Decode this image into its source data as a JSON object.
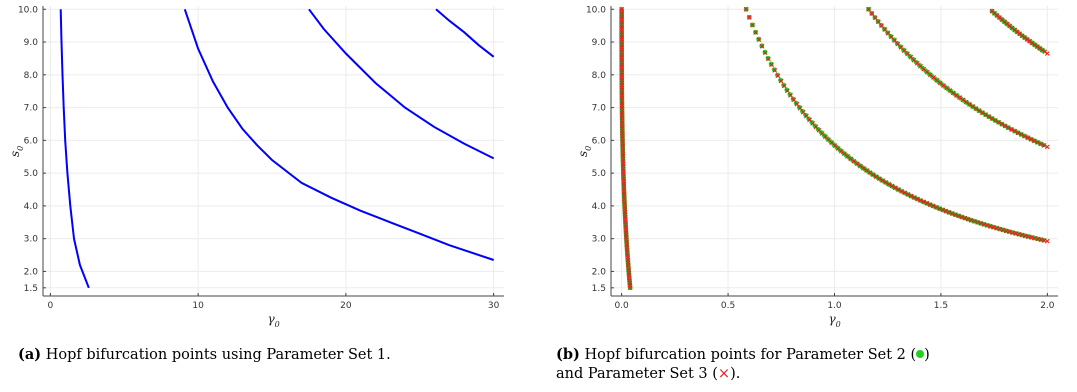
{
  "panels": [
    {
      "caption_label": "(a)",
      "caption_text": "Hopf bifurcation points using Parameter Set 1.",
      "chart_data": {
        "type": "line",
        "xlabel": "γ0",
        "ylabel": "s0",
        "xlim": [
          -0.5,
          30.7
        ],
        "ylim": [
          1.25,
          10.1
        ],
        "xticks": [
          0,
          10,
          20,
          30
        ],
        "yticks": [
          1.5,
          2.0,
          3.0,
          4.0,
          5.0,
          6.0,
          7.0,
          8.0,
          9.0,
          10.0
        ],
        "grid": true,
        "series": [
          {
            "color": "#0000ff",
            "points": [
              [
                0.7,
                10.0
              ],
              [
                0.75,
                9.0
              ],
              [
                0.82,
                8.0
              ],
              [
                0.9,
                7.0
              ],
              [
                1.0,
                6.0
              ],
              [
                1.15,
                5.0
              ],
              [
                1.35,
                4.0
              ],
              [
                1.6,
                3.0
              ],
              [
                2.0,
                2.2
              ],
              [
                2.6,
                1.5
              ]
            ]
          },
          {
            "color": "#0000ff",
            "points": [
              [
                9.1,
                10.0
              ],
              [
                10,
                8.8
              ],
              [
                11,
                7.8
              ],
              [
                12,
                7.0
              ],
              [
                13,
                6.35
              ],
              [
                14,
                5.85
              ],
              [
                15,
                5.4
              ],
              [
                17,
                4.7
              ],
              [
                19,
                4.25
              ],
              [
                21,
                3.85
              ],
              [
                23,
                3.5
              ],
              [
                25,
                3.15
              ],
              [
                27,
                2.8
              ],
              [
                30,
                2.35
              ]
            ]
          },
          {
            "color": "#0000ff",
            "points": [
              [
                17.5,
                10.0
              ],
              [
                18.5,
                9.4
              ],
              [
                20,
                8.65
              ],
              [
                22,
                7.75
              ],
              [
                24,
                7.0
              ],
              [
                26,
                6.4
              ],
              [
                28,
                5.9
              ],
              [
                30,
                5.45
              ]
            ]
          },
          {
            "color": "#0000ff",
            "points": [
              [
                26.1,
                10.0
              ],
              [
                27,
                9.65
              ],
              [
                28,
                9.3
              ],
              [
                29,
                8.9
              ],
              [
                30,
                8.55
              ]
            ]
          }
        ]
      }
    },
    {
      "caption_label": "(b)",
      "caption_text_1": "Hopf bifurcation points for Parameter Set 2 (",
      "caption_text_2": ")",
      "caption_text_3": "and Parameter Set 3 (",
      "caption_text_4": ").",
      "caption_x_symbol": "×",
      "chart_data": {
        "type": "scatter",
        "xlabel": "γ0",
        "ylabel": "s0",
        "xlim": [
          -0.05,
          2.05
        ],
        "ylim": [
          1.25,
          10.1
        ],
        "xticks": [
          0.0,
          0.5,
          1.0,
          1.5,
          2.0
        ],
        "yticks": [
          1.5,
          2.0,
          3.0,
          4.0,
          5.0,
          6.0,
          7.0,
          8.0,
          9.0,
          10.0
        ],
        "grid": true,
        "series": [
          {
            "marker": "circle",
            "color": "#1fd11f",
            "branches": [
              {
                "x": [
                  0.0,
                  0.04
                ],
                "kind": "b1",
                "end_y": 1.5
              },
              {
                "x": [
                  0.585,
                  1.98
                ],
                "kind": "b2"
              },
              {
                "x": [
                  1.16,
                  1.98
                ],
                "kind": "b3"
              },
              {
                "x": [
                  1.74,
                  1.98
                ],
                "kind": "b4"
              }
            ]
          },
          {
            "marker": "x",
            "color": "#e02020",
            "branches": [
              {
                "x": [
                  0.0,
                  0.04
                ],
                "kind": "b1",
                "end_y": 1.5
              },
              {
                "x": [
                  0.585,
                  2.0
                ],
                "kind": "b2"
              },
              {
                "x": [
                  1.16,
                  2.0
                ],
                "kind": "b3"
              },
              {
                "x": [
                  1.74,
                  2.0
                ],
                "kind": "b4"
              }
            ]
          }
        ]
      }
    }
  ]
}
